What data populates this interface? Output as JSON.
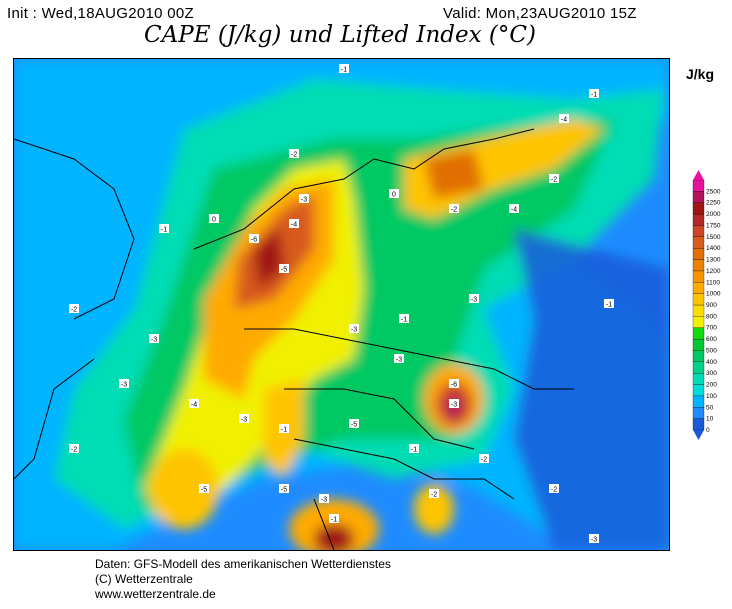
{
  "header": {
    "init": "Init : Wed,18AUG2010 00Z",
    "valid": "Valid: Mon,23AUG2010 15Z",
    "title": "CAPE (J/kg) und Lifted Index (°C)"
  },
  "legend": {
    "unit": "J/kg",
    "levels": [
      "0",
      "10",
      "50",
      "100",
      "200",
      "300",
      "400",
      "500",
      "600",
      "700",
      "800",
      "900",
      "1000",
      "1100",
      "1200",
      "1300",
      "1400",
      "1500",
      "1750",
      "2000",
      "2250",
      "2500"
    ],
    "colors": [
      "#1a5ad8",
      "#1e8cff",
      "#00b4ff",
      "#00dcdc",
      "#00dcb4",
      "#00d28c",
      "#00c864",
      "#00c832",
      "#10dc10",
      "#f0f000",
      "#ffdc00",
      "#ffc400",
      "#ffaa00",
      "#f59600",
      "#eb8200",
      "#e16e00",
      "#d75a1e",
      "#cd4628",
      "#b42828",
      "#a01414",
      "#b4145a",
      "#e6149b"
    ]
  },
  "map": {
    "labels": [
      "-1",
      "-1",
      "-2",
      "-3",
      "-4",
      "-5",
      "-6",
      "-2",
      "-3",
      "-1",
      "0",
      "-3",
      "-4",
      "-3",
      "-5",
      "-6",
      "-3",
      "-2",
      "-1",
      "-3",
      "-4",
      "-5",
      "-2",
      "-3",
      "-1",
      "-2",
      "-1",
      "-4",
      "-5",
      "-2",
      "-3",
      "-1",
      "0",
      "-2",
      "-3",
      "-1",
      "-2",
      "-3"
    ]
  },
  "footer": {
    "line1": "Daten: GFS-Modell des amerikanischen Wetterdienstes",
    "line2": "(C) Wetterzentrale",
    "line3": "www.wetterzentrale.de"
  }
}
